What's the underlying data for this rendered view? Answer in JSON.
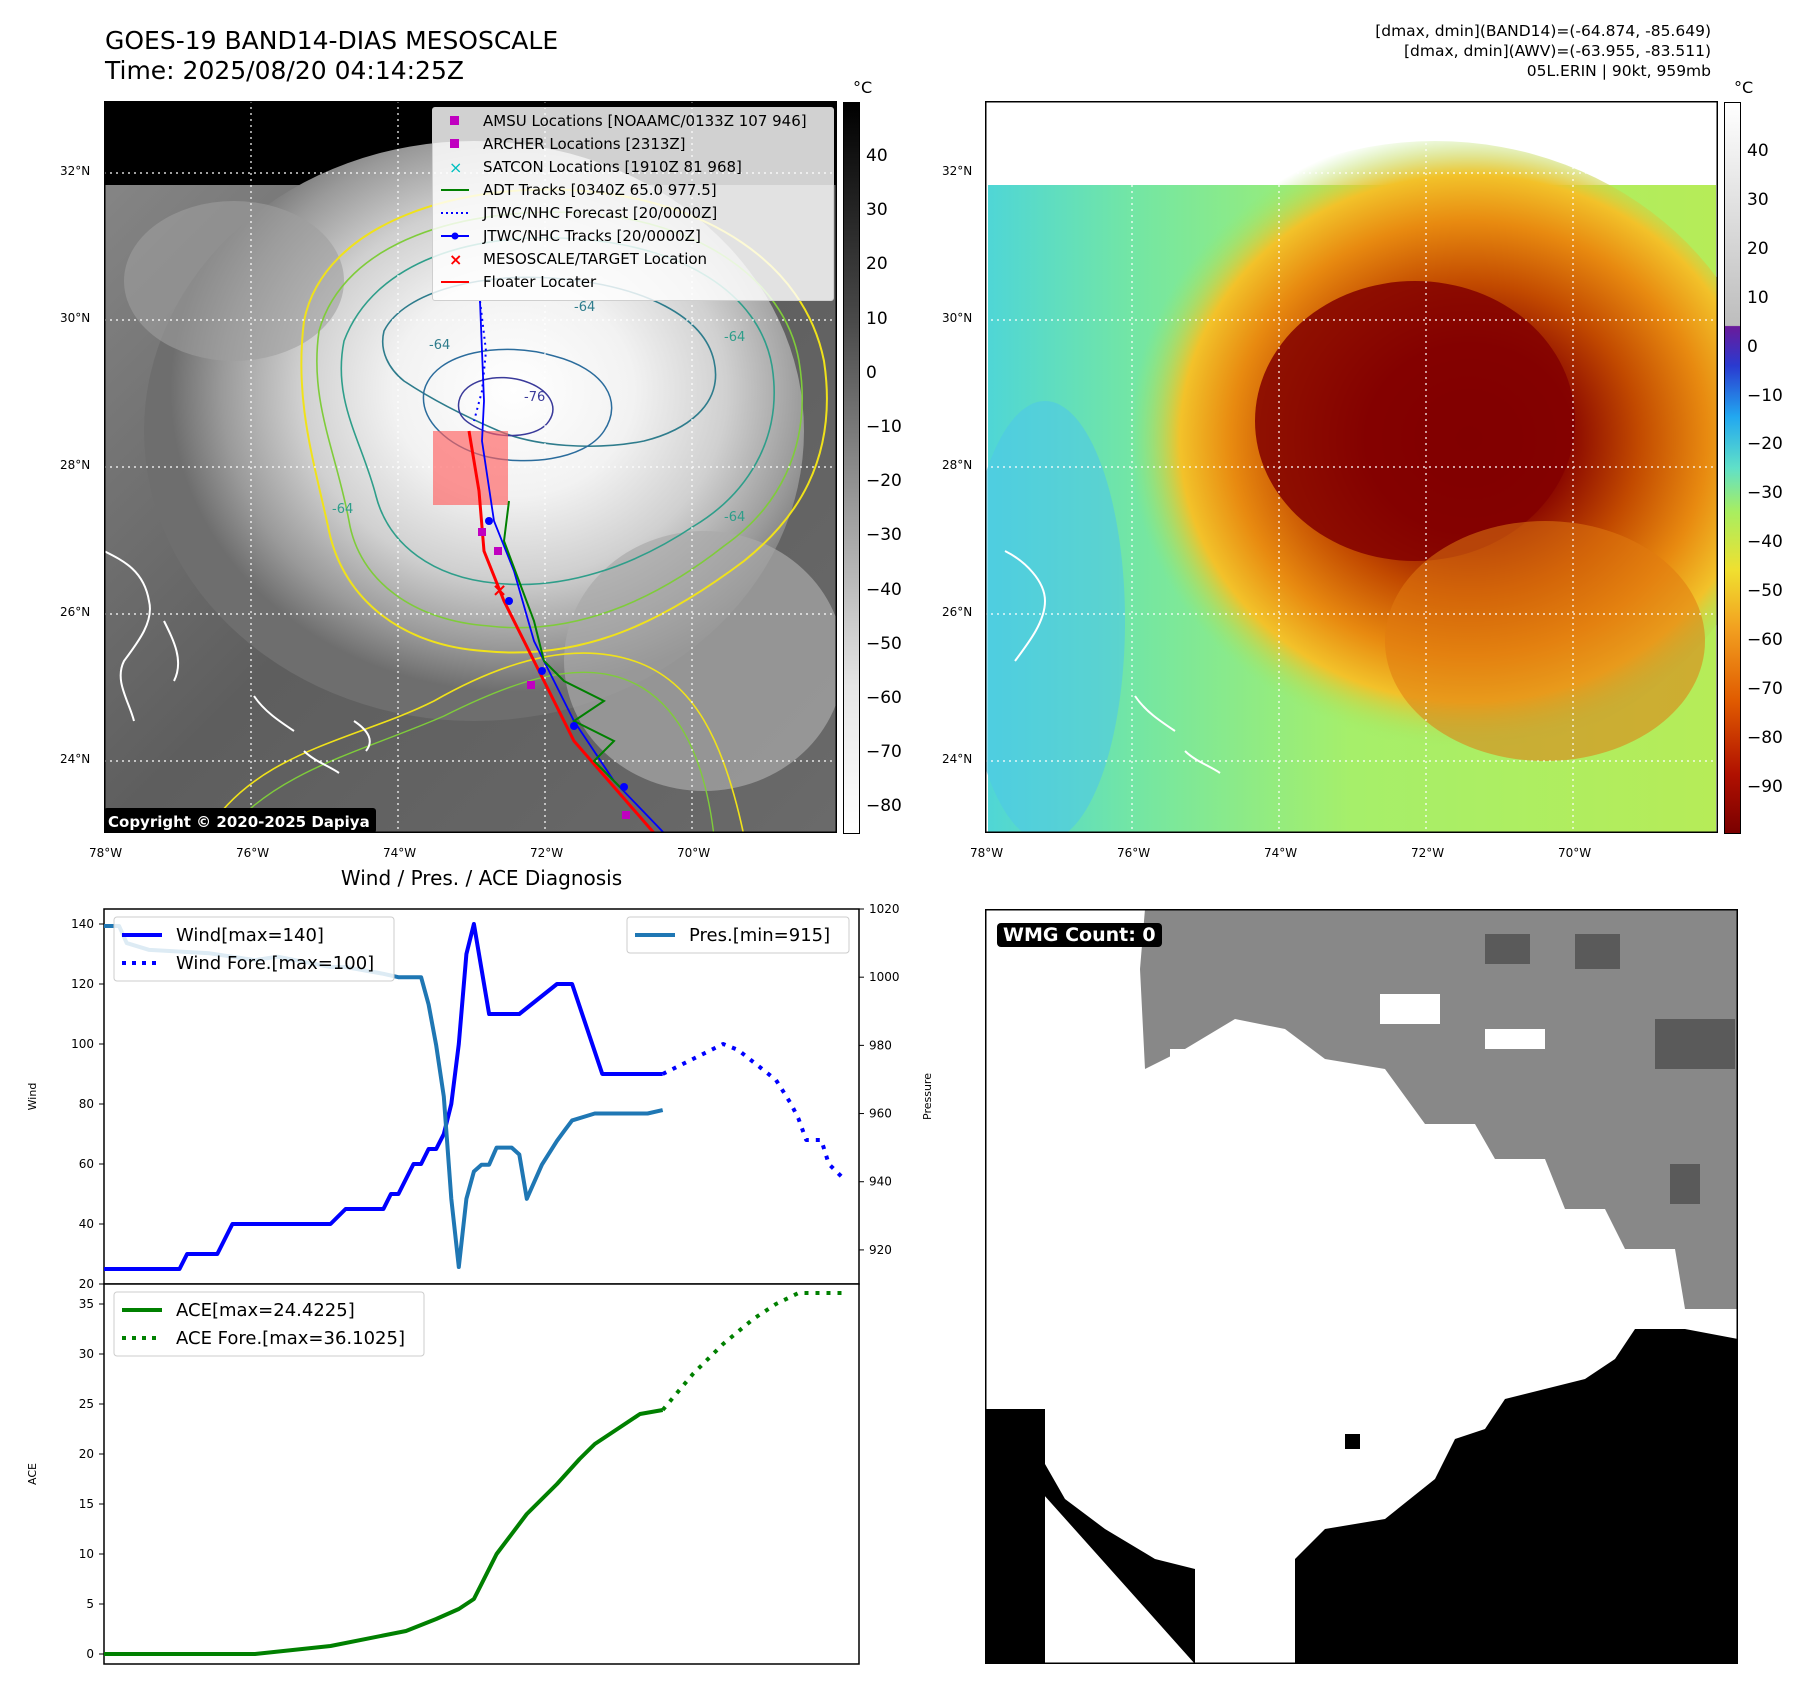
{
  "header": {
    "title_line1": "GOES-19 BAND14-DIAS MESOSCALE",
    "title_line2": "Time: 2025/08/20 04:14:25Z",
    "right_line1": "[dmax, dmin](BAND14)=(-64.874, -85.649)",
    "right_line2": "[dmax, dmin](AWV)=(-63.955, -83.511)",
    "right_line3": "05L.ERIN | 90kt, 959mb"
  },
  "ir_map": {
    "lat_labels": [
      "32°N",
      "30°N",
      "28°N",
      "26°N",
      "24°N"
    ],
    "lon_labels": [
      "78°W",
      "76°W",
      "74°W",
      "72°W",
      "70°W"
    ],
    "copyright": "Copyright © 2020-2025 Dapiya",
    "contour_labels": [
      "-64",
      "-64",
      "-76",
      "-64",
      "-64",
      "-64"
    ],
    "legend": [
      {
        "label": "AMSU Locations [NOAAMC/0133Z 107 946]",
        "color": "#c000c0",
        "symbol": "square"
      },
      {
        "label": "ARCHER Locations [2313Z]",
        "color": "#c000c0",
        "symbol": "square"
      },
      {
        "label": "SATCON Locations [1910Z 81 968]",
        "color": "#00c0c0",
        "symbol": "x"
      },
      {
        "label": "ADT Tracks [0340Z 65.0 977.5]",
        "color": "#008000",
        "symbol": "line"
      },
      {
        "label": "JTWC/NHC Forecast [20/0000Z]",
        "color": "#0000ff",
        "symbol": "dotted"
      },
      {
        "label": "JTWC/NHC Tracks [20/0000Z]",
        "color": "#0000ff",
        "symbol": "line-dot"
      },
      {
        "label": "MESOSCALE/TARGET Location",
        "color": "#ff0000",
        "symbol": "x"
      },
      {
        "label": "Floater Locater",
        "color": "#ff0000",
        "symbol": "line"
      }
    ],
    "colorbar": {
      "unit": "°C",
      "ticks": [
        "40",
        "30",
        "20",
        "10",
        "0",
        "−10",
        "−20",
        "−30",
        "−40",
        "−50",
        "−60",
        "−70",
        "−80"
      ]
    }
  },
  "wv_map": {
    "lat_labels": [
      "32°N",
      "30°N",
      "28°N",
      "26°N",
      "24°N"
    ],
    "lon_labels": [
      "78°W",
      "76°W",
      "74°W",
      "72°W",
      "70°W"
    ],
    "colorbar": {
      "unit": "°C",
      "ticks": [
        "40",
        "30",
        "20",
        "10",
        "0",
        "−10",
        "−20",
        "−30",
        "−40",
        "−50",
        "−60",
        "−70",
        "−80",
        "−90"
      ]
    }
  },
  "diag_title": "Wind / Pres. / ACE Diagnosis",
  "wmg": {
    "label": "WMG Count: 0"
  },
  "colors": {
    "wind": "#0000ff",
    "pressure": "#1f77b4",
    "ace": "#008000"
  },
  "chart_data": [
    {
      "type": "line",
      "title": "Wind / Pres. / ACE Diagnosis",
      "ylabel": "Wind",
      "y2label": "Pressure",
      "ylim": [
        20,
        145
      ],
      "y2lim": [
        910,
        1020
      ],
      "xlim": [
        0,
        100
      ],
      "yticks": [
        20,
        40,
        60,
        80,
        100,
        120,
        140
      ],
      "y2ticks": [
        920,
        940,
        960,
        980,
        1000,
        1020
      ],
      "legend_left": [
        "Wind[max=140]",
        "Wind Fore.[max=100]"
      ],
      "legend_right": [
        "Pres.[min=915]"
      ],
      "series": [
        {
          "name": "Wind[max=140]",
          "style": "solid",
          "color": "#0000ff",
          "x": [
            0,
            10,
            11,
            15,
            17,
            20,
            30,
            32,
            37,
            38,
            39,
            41,
            42,
            43,
            44,
            45,
            46,
            47,
            48,
            49,
            50,
            51,
            52,
            53,
            55,
            60,
            62,
            66,
            69,
            74
          ],
          "y": [
            25,
            25,
            30,
            30,
            40,
            40,
            40,
            45,
            45,
            50,
            50,
            60,
            60,
            65,
            65,
            70,
            80,
            100,
            130,
            140,
            125,
            110,
            110,
            110,
            110,
            120,
            120,
            90,
            90,
            90
          ]
        },
        {
          "name": "Wind Fore.[max=100]",
          "style": "dotted",
          "color": "#0000ff",
          "x": [
            74,
            78,
            82,
            84,
            87,
            89,
            91,
            92,
            93,
            95,
            96,
            98
          ],
          "y": [
            90,
            95,
            100,
            98,
            92,
            88,
            80,
            75,
            68,
            68,
            60,
            55
          ]
        },
        {
          "name": "Pres.[min=915]",
          "style": "solid",
          "color": "#1f77b4",
          "axis": "right",
          "x": [
            0,
            2,
            3,
            6,
            14,
            20,
            23,
            30,
            32,
            37,
            39,
            40,
            41,
            42,
            43,
            44,
            45,
            46,
            47,
            48,
            49,
            50,
            51,
            52,
            53,
            54,
            55,
            56,
            58,
            60,
            61,
            62,
            65,
            67,
            69,
            70,
            72,
            74
          ],
          "y": [
            1015,
            1015,
            1010,
            1008,
            1007,
            1005,
            1006,
            1003,
            1003,
            1001,
            1000,
            1000,
            1000,
            1000,
            992,
            980,
            965,
            935,
            915,
            935,
            943,
            945,
            945,
            950,
            950,
            950,
            948,
            935,
            945,
            952,
            955,
            958,
            960,
            960,
            960,
            960,
            960,
            961
          ]
        }
      ]
    },
    {
      "type": "line",
      "ylabel": "ACE",
      "ylim": [
        -1,
        37
      ],
      "xlim": [
        0,
        100
      ],
      "yticks": [
        0,
        5,
        10,
        15,
        20,
        25,
        30,
        35
      ],
      "legend": [
        "ACE[max=24.4225]",
        "ACE Fore.[max=36.1025]"
      ],
      "series": [
        {
          "name": "ACE[max=24.4225]",
          "style": "solid",
          "color": "#008000",
          "x": [
            0,
            20,
            30,
            40,
            44,
            47,
            49,
            50,
            52,
            56,
            60,
            63,
            65,
            68,
            71,
            74
          ],
          "y": [
            0,
            0,
            0.8,
            2.3,
            3.5,
            4.5,
            5.5,
            7,
            10,
            14,
            17,
            19.5,
            21,
            22.5,
            24,
            24.4
          ]
        },
        {
          "name": "ACE Fore.[max=36.1025]",
          "style": "dotted",
          "color": "#008000",
          "x": [
            74,
            78,
            82,
            86,
            89,
            92,
            95,
            98
          ],
          "y": [
            24.4,
            28,
            31,
            33.5,
            35,
            36.1,
            36.1,
            36.1
          ]
        }
      ]
    }
  ]
}
